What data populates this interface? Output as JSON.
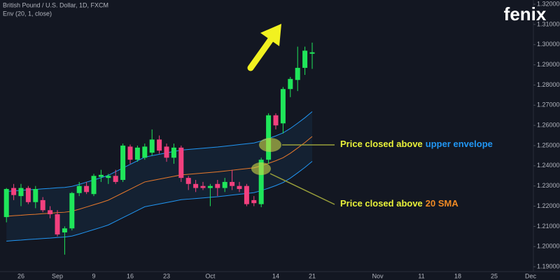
{
  "logo": "fenix",
  "chart_data": {
    "type": "candlestick",
    "title": "British Pound / U.S. Dollar, 1D, FXCM",
    "subtitle": "Env (20, 1, close)",
    "categories": [
      null,
      null,
      "26",
      null,
      null,
      null,
      null,
      "Sep",
      null,
      null,
      null,
      null,
      "9",
      null,
      null,
      null,
      null,
      "16",
      null,
      null,
      null,
      null,
      "23",
      null,
      null,
      null,
      null,
      null,
      "Oct",
      null,
      null,
      null,
      null,
      null,
      null,
      null,
      null,
      "14",
      null,
      null,
      null,
      null,
      "21",
      null,
      null,
      null,
      null,
      null,
      null,
      null,
      null,
      "Nov",
      null,
      null,
      null,
      null,
      null,
      "11",
      null,
      null,
      null,
      null,
      "18",
      null,
      null,
      null,
      null,
      "25",
      null,
      null,
      null,
      null,
      "Dec",
      null,
      null
    ],
    "open": [
      1.2146,
      1.229,
      1.225,
      1.229,
      1.222,
      1.223,
      1.218,
      1.216,
      1.207,
      1.209,
      1.2265,
      1.23,
      1.226,
      1.2345,
      1.234,
      1.235,
      1.233,
      1.2495,
      1.243,
      1.244,
      1.2465,
      1.253,
      1.2495,
      1.244,
      1.249,
      1.234,
      1.231,
      1.23,
      1.229,
      1.231,
      1.229,
      1.232,
      1.23,
      1.23,
      1.223,
      1.221,
      1.243,
      1.265,
      1.261,
      1.278,
      1.2825,
      1.2885,
      1.2955,
      null,
      null,
      null,
      null,
      null,
      null,
      null,
      null,
      null,
      null,
      null,
      null,
      null,
      null,
      null,
      null,
      null,
      null,
      null,
      null,
      null,
      null,
      null,
      null,
      null,
      null,
      null,
      null,
      null,
      null,
      null,
      null
    ],
    "high": [
      1.229,
      1.231,
      1.231,
      1.23,
      1.23,
      1.2245,
      1.22,
      1.218,
      1.21,
      1.227,
      1.232,
      1.232,
      1.236,
      1.238,
      1.236,
      1.238,
      1.251,
      1.2505,
      1.25,
      1.251,
      1.258,
      1.255,
      1.251,
      1.251,
      1.25,
      1.235,
      1.233,
      1.232,
      1.231,
      1.233,
      1.234,
      1.238,
      1.232,
      1.231,
      1.225,
      1.244,
      1.266,
      1.266,
      1.279,
      1.284,
      1.299,
      1.299,
      1.301,
      null,
      null,
      null,
      null,
      null,
      null,
      null,
      null,
      null,
      null,
      null,
      null,
      null,
      null,
      null,
      null,
      null,
      null,
      null,
      null,
      null,
      null,
      null,
      null,
      null,
      null,
      null,
      null,
      null,
      null,
      null,
      null
    ],
    "low": [
      1.212,
      1.223,
      1.22,
      1.221,
      1.219,
      1.217,
      1.214,
      1.205,
      1.196,
      1.208,
      1.225,
      1.226,
      1.225,
      1.232,
      1.231,
      1.231,
      1.232,
      1.241,
      1.242,
      1.243,
      1.245,
      1.246,
      1.242,
      1.241,
      1.232,
      1.228,
      1.227,
      1.228,
      1.22,
      1.225,
      1.227,
      1.228,
      1.227,
      1.22,
      1.22,
      1.2195,
      1.241,
      1.258,
      1.256,
      1.274,
      1.277,
      1.285,
      1.288,
      null,
      null,
      null,
      null,
      null,
      null,
      null,
      null,
      null,
      null,
      null,
      null,
      null,
      null,
      null,
      null,
      null,
      null,
      null,
      null,
      null,
      null,
      null,
      null,
      null,
      null,
      null,
      null,
      null,
      null,
      null,
      null
    ],
    "close": [
      1.2285,
      1.2255,
      1.229,
      1.222,
      1.2285,
      1.218,
      1.216,
      1.206,
      1.209,
      1.2265,
      1.23,
      1.227,
      1.235,
      1.2355,
      1.235,
      1.232,
      1.25,
      1.243,
      1.249,
      1.2495,
      1.253,
      1.2475,
      1.244,
      1.249,
      1.234,
      1.231,
      1.229,
      1.229,
      1.23,
      1.229,
      1.232,
      1.23,
      1.2285,
      1.221,
      1.2215,
      1.243,
      1.265,
      1.26,
      1.278,
      1.283,
      1.2885,
      1.297,
      1.2962,
      null,
      null,
      null,
      null,
      null,
      null,
      null,
      null,
      null,
      null,
      null,
      null,
      null,
      null,
      null,
      null,
      null,
      null,
      null,
      null,
      null,
      null,
      null,
      null,
      null,
      null,
      null,
      null,
      null,
      null,
      null,
      null
    ],
    "up_color": "#1fe65a",
    "down_color": "#f2407e",
    "sma": {
      "color": "#e8792c",
      "values": [
        1.215,
        1.2153,
        1.2155,
        1.2158,
        1.216,
        1.2163,
        1.2165,
        1.2168,
        1.217,
        1.2175,
        1.2185,
        1.2196,
        1.2207,
        1.2218,
        1.223,
        1.2248,
        1.2266,
        1.2284,
        1.2302,
        1.232,
        1.2327,
        1.2334,
        1.2341,
        1.2348,
        1.2355,
        1.2358,
        1.2361,
        1.2364,
        1.2367,
        1.237,
        1.2374,
        1.2378,
        1.2382,
        1.2386,
        1.239,
        1.24,
        1.2412,
        1.2425,
        1.244,
        1.2462,
        1.2488,
        1.2515,
        1.2545,
        null,
        null,
        null,
        null,
        null,
        null,
        null,
        null,
        null,
        null,
        null,
        null,
        null,
        null,
        null,
        null,
        null,
        null,
        null,
        null,
        null,
        null,
        null,
        null,
        null,
        null,
        null,
        null,
        null,
        null,
        null,
        null
      ]
    },
    "envelope_upper": {
      "color": "#2196f3",
      "values": [
        1.2273,
        1.2276,
        1.2278,
        1.2281,
        1.2283,
        1.2286,
        1.2288,
        1.2291,
        1.2293,
        1.2298,
        1.2308,
        1.2319,
        1.233,
        1.2341,
        1.2353,
        1.2371,
        1.2389,
        1.2407,
        1.2425,
        1.2443,
        1.245,
        1.2457,
        1.2464,
        1.2471,
        1.2478,
        1.2481,
        1.2484,
        1.2487,
        1.249,
        1.2493,
        1.2497,
        1.2501,
        1.2505,
        1.2509,
        1.2513,
        1.2523,
        1.2535,
        1.2548,
        1.2563,
        1.2585,
        1.2611,
        1.2638,
        1.2668,
        null,
        null,
        null,
        null,
        null,
        null,
        null,
        null,
        null,
        null,
        null,
        null,
        null,
        null,
        null,
        null,
        null,
        null,
        null,
        null,
        null,
        null,
        null,
        null,
        null,
        null,
        null,
        null,
        null,
        null,
        null,
        null
      ]
    },
    "envelope_lower": {
      "color": "#2196f3",
      "values": [
        1.2027,
        1.203,
        1.2032,
        1.2035,
        1.2037,
        1.204,
        1.2042,
        1.2045,
        1.2047,
        1.2052,
        1.2062,
        1.2073,
        1.2084,
        1.2095,
        1.2107,
        1.2125,
        1.2143,
        1.2161,
        1.2179,
        1.2197,
        1.2204,
        1.2211,
        1.2218,
        1.2225,
        1.2232,
        1.2235,
        1.2238,
        1.2241,
        1.2244,
        1.2247,
        1.2251,
        1.2255,
        1.2259,
        1.2263,
        1.2267,
        1.2277,
        1.2289,
        1.2302,
        1.2317,
        1.2339,
        1.2365,
        1.2392,
        1.2422,
        null,
        null,
        null,
        null,
        null,
        null,
        null,
        null,
        null,
        null,
        null,
        null,
        null,
        null,
        null,
        null,
        null,
        null,
        null,
        null,
        null,
        null,
        null,
        null,
        null,
        null,
        null,
        null,
        null,
        null,
        null,
        null
      ]
    },
    "ylim": [
      1.1876,
      1.3221
    ],
    "yticks": [
      {
        "value": 1.19,
        "label": "1.19000"
      },
      {
        "value": 1.2,
        "label": "1.20000"
      },
      {
        "value": 1.21,
        "label": "1.21000"
      },
      {
        "value": 1.22,
        "label": "1.22000"
      },
      {
        "value": 1.23,
        "label": "1.23000"
      },
      {
        "value": 1.24,
        "label": "1.24000"
      },
      {
        "value": 1.25,
        "label": "1.25000"
      },
      {
        "value": 1.26,
        "label": "1.26000"
      },
      {
        "value": 1.27,
        "label": "1.27000"
      },
      {
        "value": 1.28,
        "label": "1.28000"
      },
      {
        "value": 1.29,
        "label": "1.29000"
      },
      {
        "value": 1.3,
        "label": "1.30000"
      },
      {
        "value": 1.31,
        "label": "1.31000"
      },
      {
        "value": 1.32,
        "label": "1.32000"
      }
    ],
    "grid": false,
    "annotations": [
      {
        "text": "Price closed above",
        "highlight": "upper envelope",
        "color": "#e9f23a",
        "highlight_color": "#2196f3"
      },
      {
        "text": "Price closed above",
        "highlight": "20 SMA",
        "color": "#e9f23a",
        "highlight_color": "#f08a24"
      }
    ]
  }
}
